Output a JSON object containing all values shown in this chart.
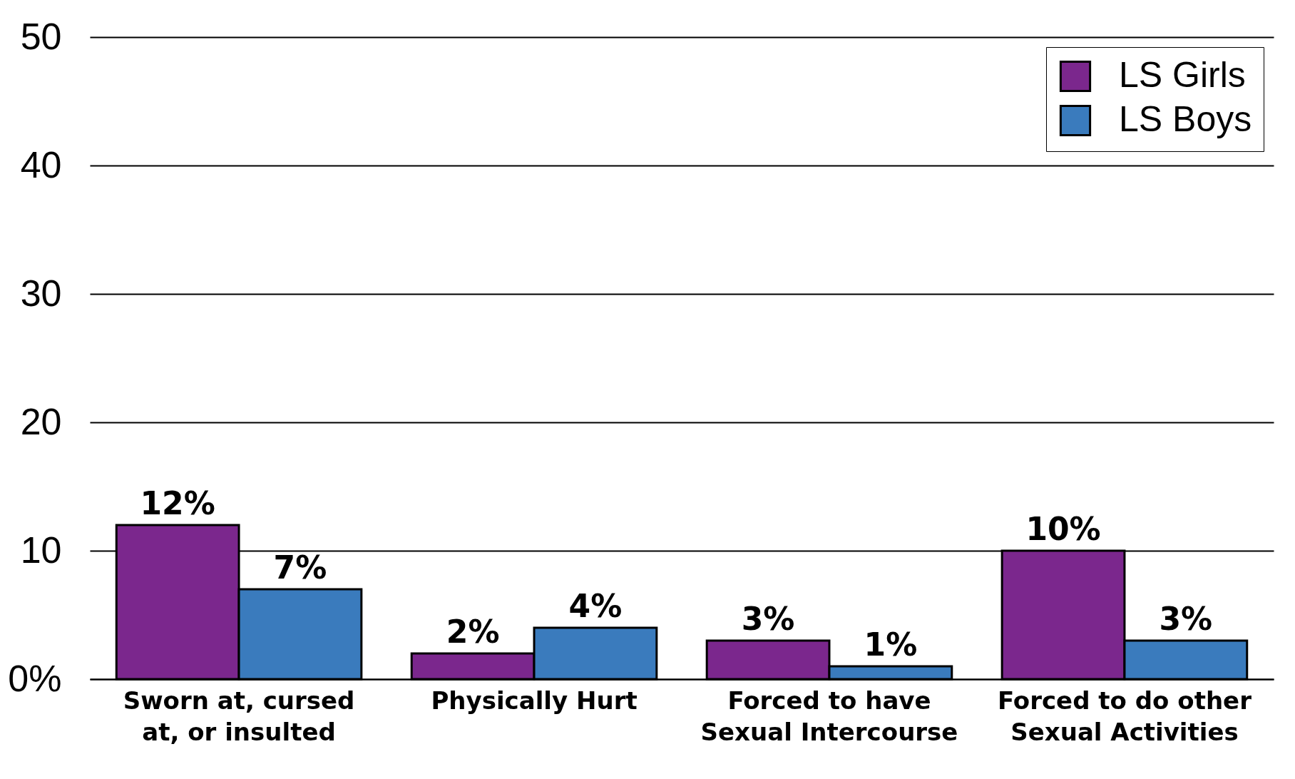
{
  "chart_data": {
    "type": "bar",
    "categories": [
      "Sworn at, cursed at, or insulted",
      "Physically Hurt",
      "Forced to have Sexual Intercourse",
      "Forced to do other Sexual Activities"
    ],
    "series": [
      {
        "name": "LS Girls",
        "color": "#7b278d",
        "values": [
          12,
          2,
          3,
          10
        ],
        "value_labels": [
          "12%",
          "2%",
          "3%",
          "10%"
        ]
      },
      {
        "name": "LS Boys",
        "color": "#3a7bbd",
        "values": [
          7,
          4,
          1,
          3
        ],
        "value_labels": [
          "7%",
          "4%",
          "1%",
          "3%"
        ]
      }
    ],
    "ylim": [
      0,
      50
    ],
    "yticks": [
      {
        "value": 0,
        "label": "0%"
      },
      10,
      20,
      30,
      40,
      50
    ],
    "grid": "y",
    "legend": "top right"
  }
}
